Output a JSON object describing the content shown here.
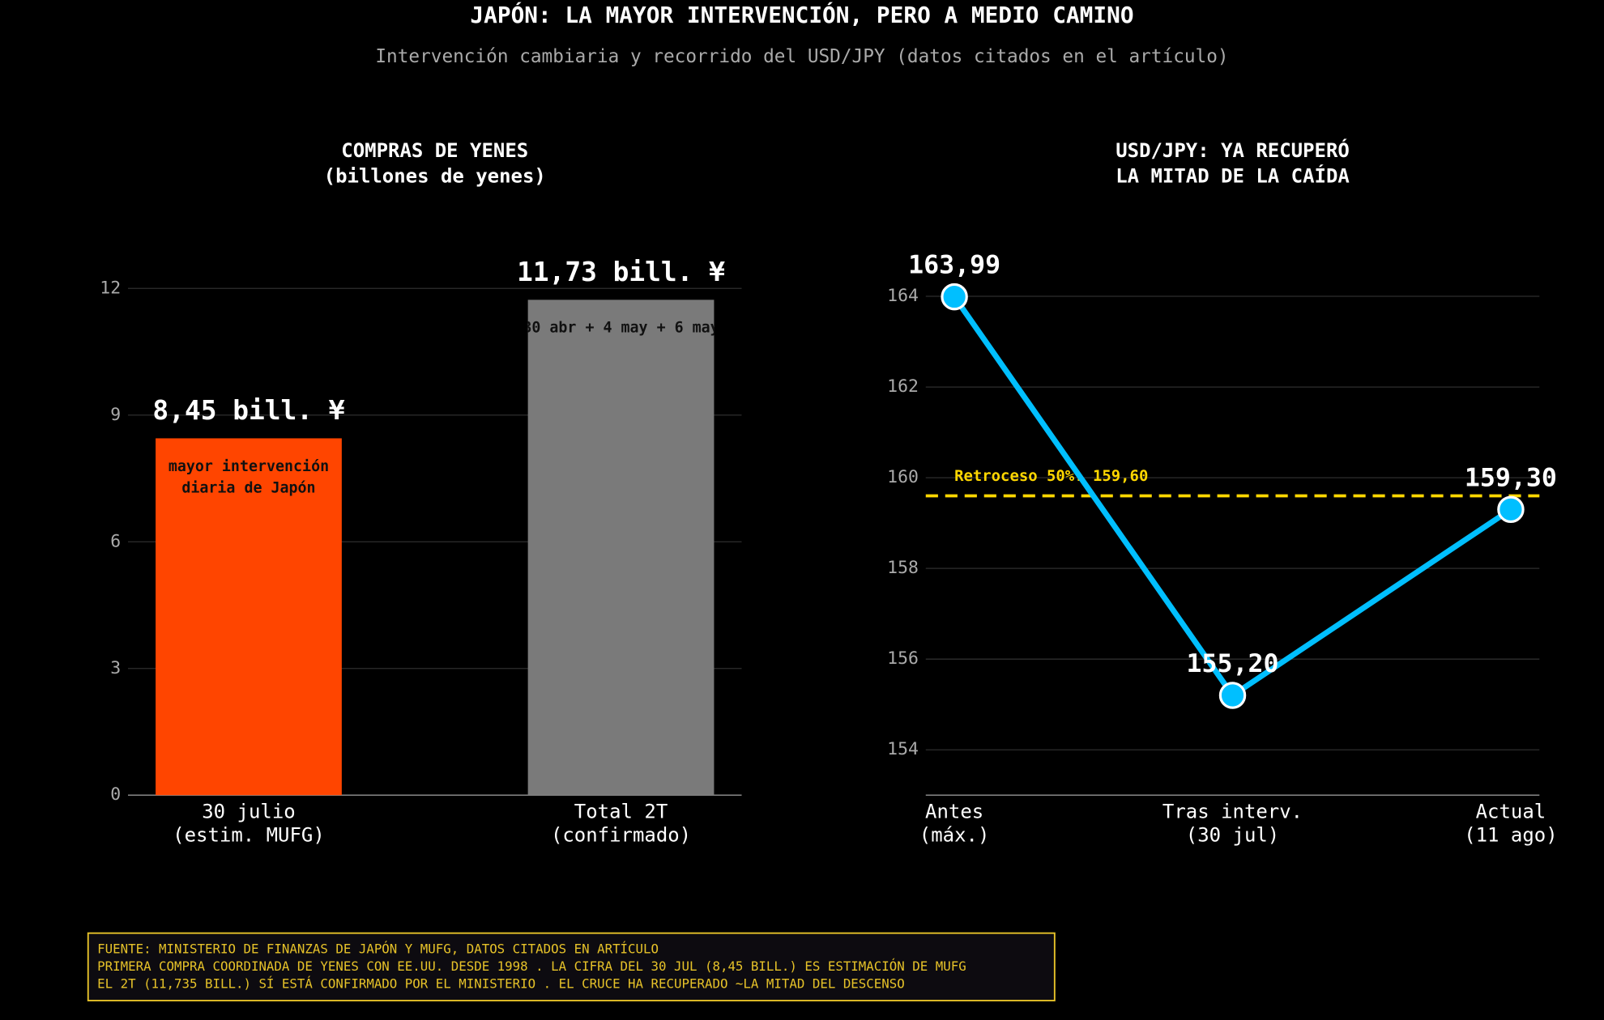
{
  "title": "JAPÓN: LA MAYOR INTERVENCIÓN, PERO A MEDIO CAMINO",
  "subtitle": "Intervención cambiaria y recorrido del USD/JPY (datos citados en el artículo)",
  "chart_data": [
    {
      "type": "bar",
      "title": "COMPRAS DE YENES\n(billones de yenes)",
      "categories": [
        "30 julio\n(estim. MUFG)",
        "Total 2T\n(confirmado)"
      ],
      "values": [
        8.45,
        11.73
      ],
      "value_labels": [
        "8,45 bill. ¥",
        "11,73 bill. ¥"
      ],
      "colors": [
        "#ff4500",
        "#7a7a7a"
      ],
      "annotations": [
        "mayor intervención\ndiaria de Japón",
        "30 abr + 4 may + 6 may"
      ],
      "ylim": [
        0,
        12.9
      ],
      "yticks": [
        0,
        3,
        6,
        9,
        12
      ],
      "grid": true
    },
    {
      "type": "line",
      "title": "USD/JPY: YA RECUPERÓ\nLA MITAD DE LA CAÍDA",
      "categories": [
        "Antes\n(máx.)",
        "Tras interv.\n(30 jul)",
        "Actual\n(11 ago)"
      ],
      "values": [
        163.99,
        155.2,
        159.3
      ],
      "value_labels": [
        "163,99",
        "155,20",
        "159,30"
      ],
      "color": "#00bfff",
      "reference_line": {
        "value": 159.6,
        "label": "Retroceso 50%: 159,60",
        "color": "#ffd700"
      },
      "ylim": [
        153,
        164.9
      ],
      "yticks": [
        154,
        156,
        158,
        160,
        162,
        164
      ],
      "grid": true
    }
  ],
  "footer": [
    "FUENTE: MINISTERIO DE FINANZAS DE JAPÓN Y MUFG, DATOS CITADOS EN ARTÍCULO",
    "PRIMERA COMPRA COORDINADA DE YENES CON EE.UU. DESDE 1998 . LA CIFRA DEL 30 JUL (8,45 BILL.) ES ESTIMACIÓN DE MUFG",
    "EL 2T (11,735 BILL.) SÍ ESTÁ CONFIRMADO POR EL MINISTERIO . EL CRUCE HA RECUPERADO ~LA MITAD DEL DESCENSO"
  ]
}
